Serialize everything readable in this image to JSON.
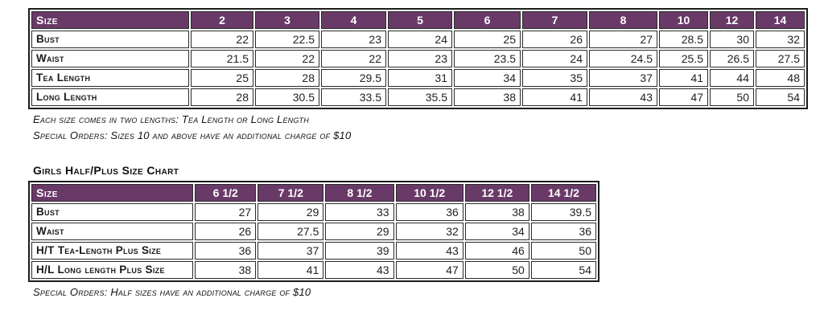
{
  "colors": {
    "header_bg": "#693a68",
    "header_text": "#ffffff",
    "border": "#2a2a2a",
    "text": "#1a1a1a"
  },
  "table1": {
    "header": [
      "Size",
      "2",
      "3",
      "4",
      "5",
      "6",
      "7",
      "8",
      "10",
      "12",
      "14"
    ],
    "rows": [
      {
        "label": "Bust",
        "values": [
          "22",
          "22.5",
          "23",
          "24",
          "25",
          "26",
          "27",
          "28.5",
          "30",
          "32"
        ]
      },
      {
        "label": "Waist",
        "values": [
          "21.5",
          "22",
          "22",
          "23",
          "23.5",
          "24",
          "24.5",
          "25.5",
          "26.5",
          "27.5"
        ]
      },
      {
        "label": "Tea Length",
        "values": [
          "25",
          "28",
          "29.5",
          "31",
          "34",
          "35",
          "37",
          "41",
          "44",
          "48"
        ]
      },
      {
        "label": "Long Length",
        "values": [
          "28",
          "30.5",
          "33.5",
          "35.5",
          "38",
          "41",
          "43",
          "47",
          "50",
          "54"
        ]
      }
    ]
  },
  "notes": {
    "lengths_note": "Each size comes in two lengths: Tea Length or Long Length",
    "special_orders_note_1": "Special Orders: Sizes 10 and above have an additional charge of $10",
    "special_orders_note_2": "Special Orders: Half sizes have an additional charge of $10"
  },
  "table2": {
    "title": "Girls Half/Plus Size Chart",
    "header": [
      "Size",
      "6 1/2",
      "7 1/2",
      "8 1/2",
      "10 1/2",
      "12 1/2",
      "14 1/2"
    ],
    "rows": [
      {
        "label": "Bust",
        "values": [
          "27",
          "29",
          "33",
          "36",
          "38",
          "39.5"
        ]
      },
      {
        "label": "Waist",
        "values": [
          "26",
          "27.5",
          "29",
          "32",
          "34",
          "36"
        ]
      },
      {
        "label": "H/T Tea-Length Plus Size",
        "values": [
          "36",
          "37",
          "39",
          "43",
          "46",
          "50"
        ]
      },
      {
        "label": "H/L Long length Plus Size",
        "values": [
          "38",
          "41",
          "43",
          "47",
          "50",
          "54"
        ]
      }
    ]
  }
}
